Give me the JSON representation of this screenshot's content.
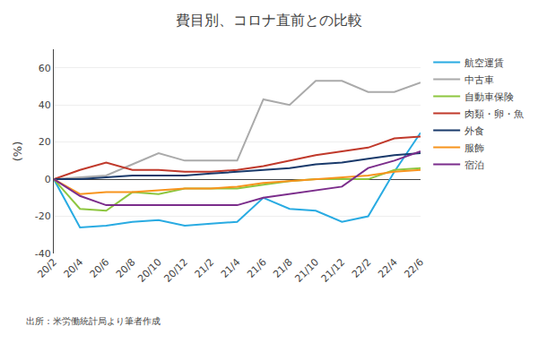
{
  "chart_data": {
    "type": "line",
    "title": "費目別、コロナ直前との比較",
    "ylabel": "(%)",
    "annotations": [
      "出所：米労働統計局より筆者作成"
    ],
    "categories": [
      "20/2",
      "20/4",
      "20/6",
      "20/8",
      "20/10",
      "20/12",
      "21/2",
      "21/4",
      "21/6",
      "21/8",
      "21/10",
      "21/12",
      "22/2",
      "22/4",
      "22/6"
    ],
    "series": [
      {
        "name": "航空運賃",
        "color": "#29ABE2",
        "values": [
          0,
          -26,
          -25,
          -23,
          -22,
          -25,
          -24,
          -23,
          -10,
          -16,
          -17,
          -23,
          -20,
          4,
          25
        ]
      },
      {
        "name": "中古車",
        "color": "#AAAAAA",
        "values": [
          0,
          1,
          2,
          8,
          14,
          10,
          10,
          10,
          43,
          40,
          53,
          53,
          47,
          47,
          52
        ]
      },
      {
        "name": "自動車保険",
        "color": "#8DC63F",
        "values": [
          0,
          -16,
          -17,
          -7,
          -8,
          -5,
          -5,
          -5,
          -3,
          -1,
          0,
          0,
          0,
          5,
          6
        ]
      },
      {
        "name": "肉類・卵・魚",
        "color": "#C0392B",
        "values": [
          0,
          5,
          9,
          5,
          5,
          4,
          4,
          5,
          7,
          10,
          13,
          15,
          17,
          22,
          23
        ]
      },
      {
        "name": "外食",
        "color": "#1A3A6B",
        "values": [
          0,
          0,
          1,
          2,
          2,
          2,
          3,
          4,
          5,
          6,
          8,
          9,
          11,
          13,
          14
        ]
      },
      {
        "name": "服飾",
        "color": "#F7941D",
        "values": [
          0,
          -8,
          -7,
          -7,
          -6,
          -5,
          -5,
          -4,
          -2,
          -1,
          0,
          1,
          2,
          4,
          5
        ]
      },
      {
        "name": "宿泊",
        "color": "#7B2D8B",
        "values": [
          0,
          -9,
          -14,
          -14,
          -14,
          -14,
          -14,
          -14,
          -10,
          -8,
          -6,
          -4,
          6,
          10,
          15
        ]
      }
    ],
    "ylim": [
      -40,
      70
    ],
    "yticks": [
      -40,
      -20,
      0,
      20,
      40,
      60
    ],
    "grid": true,
    "legend": "right"
  }
}
